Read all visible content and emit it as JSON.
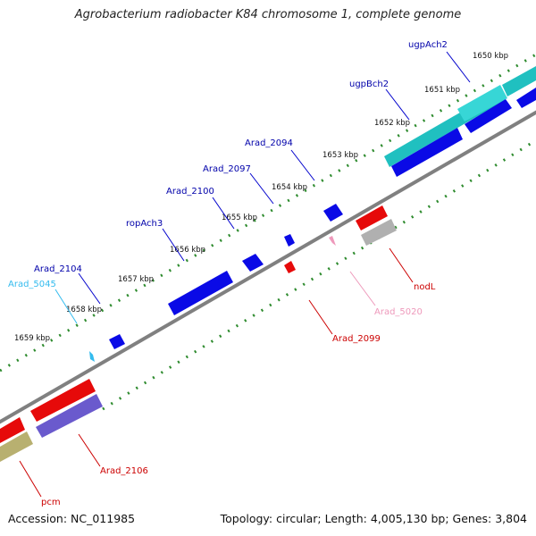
{
  "title": "Agrobacterium radiobacter K84 chromosome 1, complete genome",
  "accession": "Accession: NC_011985",
  "summary": "Topology: circular; Length: 4,005,130 bp; Genes: 3,804",
  "colors": {
    "backbone": "#808080",
    "tick": "#2e8b2e",
    "forward_gene": "#0a0ae6",
    "reverse_gene": "#e60a0a",
    "forward_cds": "#20c0c0",
    "reverse_rna": "#9a9a9a",
    "reverse_cds_alt": "#6a5acd",
    "reverse_cds_olive": "#b8b070",
    "pseudo_forward": "#33bbee",
    "pseudo_reverse": "#ee99bb"
  },
  "scale_labels": [
    "1650 kbp",
    "1651 kbp",
    "1652 kbp",
    "1653 kbp",
    "1654 kbp",
    "1655 kbp",
    "1656 kbp",
    "1657 kbp",
    "1658 kbp",
    "1659 kbp"
  ],
  "forward_labels": [
    "ugpAch2",
    "ugpBch2",
    "Arad_2094",
    "Arad_2097",
    "Arad_2100",
    "ropAch3",
    "Arad_2104",
    "Arad_5045"
  ],
  "reverse_labels": [
    "nodL",
    "Arad_5020",
    "Arad_2099",
    "Arad_2106",
    "pcm"
  ]
}
